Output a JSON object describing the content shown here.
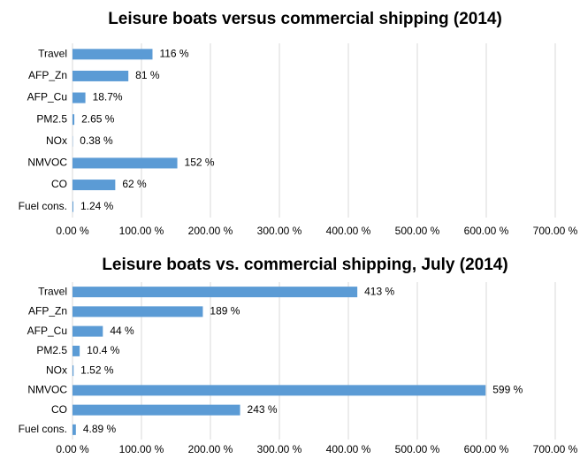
{
  "chart_data": [
    {
      "type": "bar",
      "orientation": "horizontal",
      "title": "Leisure boats versus commercial shipping (2014)",
      "categories": [
        "Travel",
        "AFP_Zn",
        "AFP_Cu",
        "PM2.5",
        "NOx",
        "NMVOC",
        "CO",
        "Fuel cons."
      ],
      "values": [
        116,
        81,
        18.7,
        2.65,
        0.38,
        152,
        62,
        1.24
      ],
      "value_labels": [
        "116 %",
        "81 %",
        "18.7%",
        "2.65 %",
        "0.38 %",
        "152 %",
        "62 %",
        "1.24 %"
      ],
      "color": "#5b9bd5",
      "grid": true,
      "xlim": [
        0,
        700
      ],
      "xticks": [
        {
          "value": 0,
          "label": "0.00 %"
        },
        {
          "value": 100,
          "label": "100.00 %"
        },
        {
          "value": 200,
          "label": "200.00 %"
        },
        {
          "value": 300,
          "label": "300.00 %"
        },
        {
          "value": 400,
          "label": "400.00 %"
        },
        {
          "value": 500,
          "label": "500.00 %"
        },
        {
          "value": 600,
          "label": "600.00 %"
        },
        {
          "value": 700,
          "label": "700.00 %"
        }
      ]
    },
    {
      "type": "bar",
      "orientation": "horizontal",
      "title": "Leisure boats vs. commercial shipping, July (2014)",
      "categories": [
        "Travel",
        "AFP_Zn",
        "AFP_Cu",
        "PM2.5",
        "NOx",
        "NMVOC",
        "CO",
        "Fuel cons."
      ],
      "values": [
        413,
        189,
        44,
        10.4,
        1.52,
        599,
        243,
        4.89
      ],
      "value_labels": [
        "413 %",
        "189 %",
        "44 %",
        "10.4 %",
        "1.52 %",
        "599 %",
        "243 %",
        "4.89 %"
      ],
      "color": "#5b9bd5",
      "grid": true,
      "xlim": [
        0,
        700
      ],
      "xticks": [
        {
          "value": 0,
          "label": "0.00 %"
        },
        {
          "value": 100,
          "label": "100.00 %"
        },
        {
          "value": 200,
          "label": "200.00 %"
        },
        {
          "value": 300,
          "label": "300.00 %"
        },
        {
          "value": 400,
          "label": "400.00 %"
        },
        {
          "value": 500,
          "label": "500.00 %"
        },
        {
          "value": 600,
          "label": "600.00 %"
        },
        {
          "value": 700,
          "label": "700.00 %"
        }
      ]
    }
  ]
}
